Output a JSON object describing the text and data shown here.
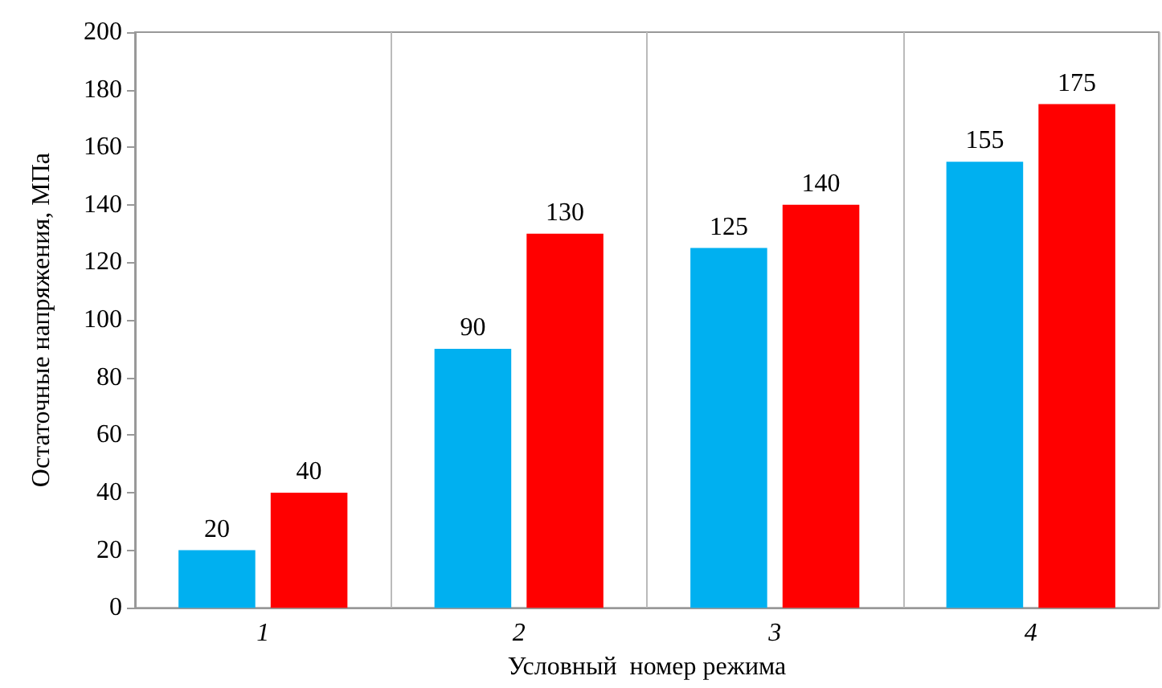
{
  "chart_data": {
    "type": "bar",
    "xlabel": "Условный  номер режима",
    "ylabel": "Остаточные напряжения, МПа",
    "categories": [
      "1",
      "2",
      "3",
      "4"
    ],
    "series": [
      {
        "color": "#00b0f0",
        "values": [
          20,
          90,
          125,
          155
        ]
      },
      {
        "color": "#ff0000",
        "values": [
          40,
          130,
          140,
          175
        ]
      }
    ],
    "ylim": [
      0,
      200
    ],
    "yticks": [
      0,
      20,
      40,
      60,
      80,
      100,
      120,
      140,
      160,
      180,
      200
    ],
    "grid": "x",
    "data_labels": true
  }
}
